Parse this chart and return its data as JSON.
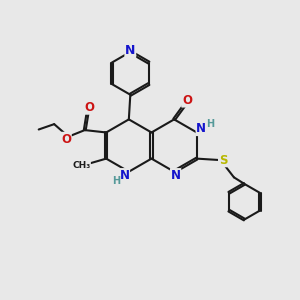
{
  "background_color": "#e8e8e8",
  "bond_color": "#1a1a1a",
  "bond_width": 1.5,
  "dbo": 0.038,
  "colors": {
    "N": "#1414cc",
    "O": "#cc1414",
    "S": "#b8b800",
    "H": "#559999",
    "C": "#1a1a1a"
  },
  "fs": 8.5,
  "fss": 7.0
}
